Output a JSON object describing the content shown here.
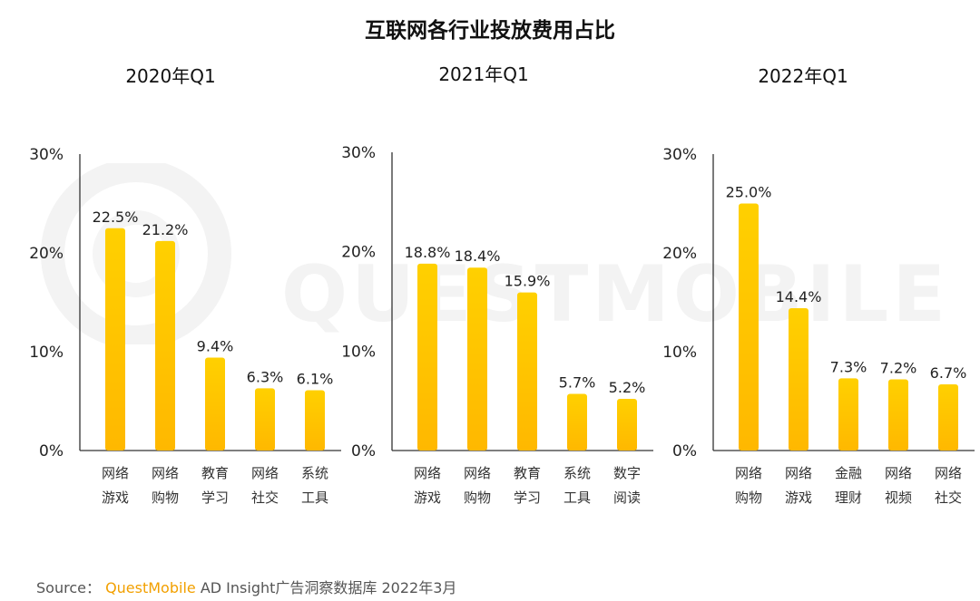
{
  "title": "互联网各行业投放费用占比",
  "source": {
    "prefix": "Source：",
    "brand": "QuestMobile",
    "suffix": " AD Insight广告洞察数据库 2022年3月"
  },
  "watermark": "QUESTMOBILE",
  "colors": {
    "bar_top": "#FFD000",
    "bar_bottom": "#FFB800",
    "axis": "#333333"
  },
  "chart_data": [
    {
      "type": "bar",
      "title": "2020年Q1",
      "categories": [
        "网络\n游戏",
        "网络\n购物",
        "教育\n学习",
        "网络\n社交",
        "系统\n工具"
      ],
      "values": [
        22.5,
        21.2,
        9.4,
        6.3,
        6.1
      ],
      "labels": [
        "22.5%",
        "21.2%",
        "9.4%",
        "6.3%",
        "6.1%"
      ],
      "ylim": [
        0,
        30
      ],
      "yticks": [
        "0%",
        "10%",
        "20%",
        "30%"
      ],
      "grid": false
    },
    {
      "type": "bar",
      "title": "2021年Q1",
      "categories": [
        "网络\n游戏",
        "网络\n购物",
        "教育\n学习",
        "系统\n工具",
        "数字\n阅读"
      ],
      "values": [
        18.8,
        18.4,
        15.9,
        5.7,
        5.2
      ],
      "labels": [
        "18.8%",
        "18.4%",
        "15.9%",
        "5.7%",
        "5.2%"
      ],
      "ylim": [
        0,
        30
      ],
      "yticks": [
        "0%",
        "10%",
        "20%",
        "30%"
      ],
      "grid": false
    },
    {
      "type": "bar",
      "title": "2022年Q1",
      "categories": [
        "网络\n购物",
        "网络\n游戏",
        "金融\n理财",
        "网络\n视频",
        "网络\n社交"
      ],
      "values": [
        25.0,
        14.4,
        7.3,
        7.2,
        6.7
      ],
      "labels": [
        "25.0%",
        "14.4%",
        "7.3%",
        "7.2%",
        "6.7%"
      ],
      "ylim": [
        0,
        30
      ],
      "yticks": [
        "0%",
        "10%",
        "20%",
        "30%"
      ],
      "grid": false
    }
  ]
}
